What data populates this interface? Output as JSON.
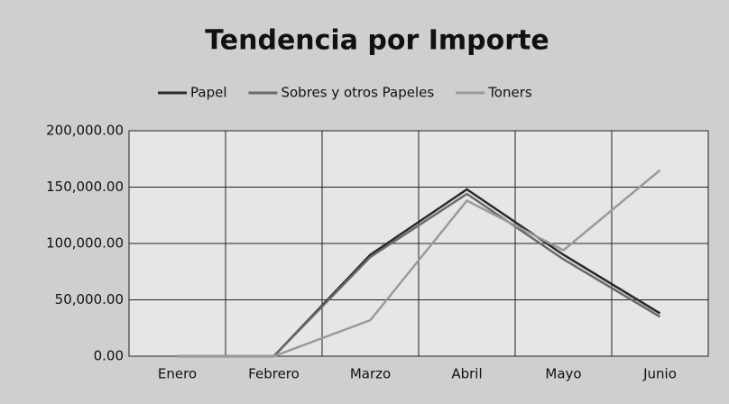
{
  "chart_data": {
    "type": "line",
    "title": "Tendencia por Importe",
    "categories": [
      "Enero",
      "Febrero",
      "Marzo",
      "Abril",
      "Mayo",
      "Junio"
    ],
    "series": [
      {
        "name": "Papel",
        "color": "#2a2a2a",
        "values": [
          0,
          0,
          90000,
          148000,
          90000,
          38000
        ]
      },
      {
        "name": "Sobres y otros Papeles",
        "color": "#6a6a6a",
        "values": [
          0,
          0,
          88000,
          144000,
          86000,
          35000
        ]
      },
      {
        "name": "Toners",
        "color": "#9a9a9a",
        "values": [
          0,
          0,
          32000,
          138000,
          94000,
          165000
        ]
      }
    ],
    "ylim": [
      0,
      200000
    ],
    "yticks": [
      {
        "value": 0,
        "label": "0.00"
      },
      {
        "value": 50000,
        "label": "50,000.00"
      },
      {
        "value": 100000,
        "label": "100,000.00"
      },
      {
        "value": 150000,
        "label": "150,000.00"
      },
      {
        "value": 200000,
        "label": "200,000.00"
      }
    ],
    "grid": true,
    "legend": "top"
  }
}
